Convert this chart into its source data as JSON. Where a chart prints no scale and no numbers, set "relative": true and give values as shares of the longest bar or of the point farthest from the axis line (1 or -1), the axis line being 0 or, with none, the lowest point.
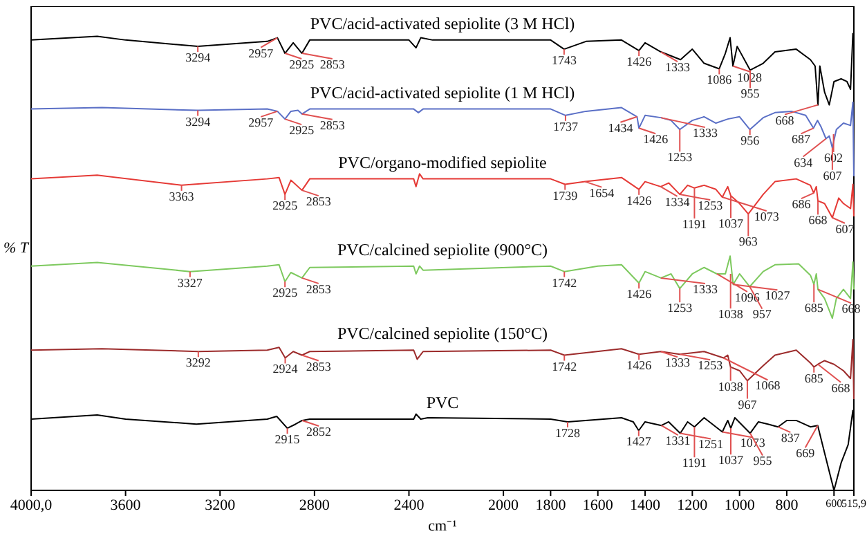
{
  "chart_data": {
    "type": "line",
    "relative": true,
    "xlabel": "cm⁻¹",
    "ylabel": "% T",
    "xlim": [
      4000,
      515.9
    ],
    "xticks": [
      {
        "value": 4000,
        "label": "4000,0"
      },
      3600,
      3200,
      2800,
      2400,
      2000,
      1800,
      1600,
      1400,
      1200,
      1000,
      800,
      600,
      {
        "value": 515.9,
        "label": "515,9"
      }
    ],
    "grid": false,
    "legend": false,
    "marker": "none",
    "line_style": "solid",
    "series": [
      {
        "name": "PVC/acid-activated sepiolite (3 M HCl)",
        "color": "#000000",
        "x": [
          4000,
          3720,
          3600,
          3294,
          3000,
          2957,
          2925,
          2890,
          2853,
          2820,
          2400,
          2370,
          2350,
          2300,
          1800,
          1743,
          1650,
          1500,
          1426,
          1400,
          1333,
          1250,
          1200,
          1150,
          1086,
          1060,
          1040,
          1028,
          1010,
          955,
          900,
          850,
          760,
          700,
          680,
          668,
          660,
          640,
          620,
          600,
          570,
          545,
          530,
          520,
          516
        ],
        "values": [
          0.986,
          0.994,
          0.986,
          0.972,
          0.983,
          0.991,
          0.957,
          0.98,
          0.957,
          0.986,
          0.986,
          0.969,
          0.991,
          0.986,
          0.986,
          0.966,
          0.983,
          0.986,
          0.963,
          0.98,
          0.96,
          0.943,
          0.966,
          0.935,
          0.923,
          0.957,
          0.991,
          0.929,
          0.972,
          0.92,
          0.935,
          0.96,
          0.966,
          0.943,
          0.929,
          0.844,
          0.929,
          0.872,
          0.844,
          0.895,
          0.901,
          0.895,
          0.878,
          1.0,
          0.986
        ]
      },
      {
        "name": "PVC/acid-activated sepiolite (1 M HCl)",
        "color": "#5a6fc6",
        "x": [
          4000,
          3700,
          3294,
          3000,
          2957,
          2925,
          2900,
          2870,
          2853,
          2820,
          2380,
          2360,
          2340,
          1800,
          1737,
          1650,
          1500,
          1434,
          1426,
          1400,
          1333,
          1290,
          1253,
          1200,
          1150,
          1100,
          1050,
          1000,
          956,
          900,
          850,
          780,
          720,
          687,
          670,
          655,
          634,
          620,
          607,
          590,
          560,
          530,
          520,
          516
        ],
        "values": [
          0.835,
          0.838,
          0.832,
          0.835,
          0.83,
          0.813,
          0.83,
          0.832,
          0.824,
          0.835,
          0.835,
          0.827,
          0.835,
          0.835,
          0.821,
          0.83,
          0.838,
          0.818,
          0.793,
          0.821,
          0.816,
          0.81,
          0.79,
          0.81,
          0.818,
          0.804,
          0.813,
          0.818,
          0.79,
          0.816,
          0.827,
          0.83,
          0.821,
          0.793,
          0.81,
          0.796,
          0.77,
          0.776,
          0.75,
          0.79,
          0.804,
          0.799,
          0.85,
          0.688
        ]
      },
      {
        "name": "PVC/organo-modified sepiolite",
        "color": "#e53935",
        "x": [
          4000,
          3720,
          3363,
          3000,
          2950,
          2925,
          2900,
          2853,
          2820,
          2380,
          2370,
          2355,
          2340,
          1800,
          1739,
          1654,
          1500,
          1426,
          1400,
          1334,
          1300,
          1253,
          1220,
          1191,
          1150,
          1100,
          1073,
          1050,
          1037,
          1000,
          963,
          900,
          850,
          760,
          700,
          686,
          675,
          668,
          640,
          607,
          580,
          560,
          530,
          520,
          516
        ],
        "values": [
          0.682,
          0.69,
          0.668,
          0.682,
          0.685,
          0.648,
          0.679,
          0.657,
          0.682,
          0.682,
          0.665,
          0.693,
          0.682,
          0.682,
          0.67,
          0.676,
          0.685,
          0.659,
          0.676,
          0.665,
          0.673,
          0.648,
          0.668,
          0.662,
          0.668,
          0.659,
          0.642,
          0.665,
          0.645,
          0.628,
          0.605,
          0.648,
          0.676,
          0.682,
          0.668,
          0.651,
          0.665,
          0.634,
          0.628,
          0.597,
          0.64,
          0.628,
          0.617,
          0.67,
          0.6
        ]
      },
      {
        "name": "PVC/calcined sepiolite (900°C)",
        "color": "#7dc95e",
        "x": [
          4000,
          3720,
          3327,
          3000,
          2950,
          2925,
          2900,
          2853,
          2820,
          2380,
          2370,
          2355,
          2340,
          1800,
          1742,
          1600,
          1500,
          1426,
          1400,
          1333,
          1290,
          1253,
          1200,
          1150,
          1096,
          1060,
          1040,
          1027,
          1000,
          957,
          900,
          850,
          750,
          700,
          685,
          675,
          668,
          640,
          607,
          590,
          560,
          530,
          520,
          516
        ],
        "values": [
          0.491,
          0.499,
          0.479,
          0.491,
          0.494,
          0.457,
          0.477,
          0.465,
          0.488,
          0.491,
          0.474,
          0.491,
          0.482,
          0.491,
          0.479,
          0.491,
          0.494,
          0.454,
          0.479,
          0.465,
          0.474,
          0.442,
          0.474,
          0.488,
          0.474,
          0.474,
          0.513,
          0.451,
          0.474,
          0.446,
          0.479,
          0.494,
          0.496,
          0.471,
          0.451,
          0.474,
          0.44,
          0.42,
          0.377,
          0.42,
          0.44,
          0.42,
          0.5,
          0.44
        ]
      },
      {
        "name": "PVC/calcined sepiolite (150°C)",
        "color": "#9c2b2b",
        "x": [
          4000,
          3700,
          3292,
          3000,
          2950,
          2924,
          2890,
          2853,
          2820,
          2380,
          2365,
          2340,
          1800,
          1742,
          1500,
          1426,
          1333,
          1253,
          1150,
          1068,
          1050,
          1038,
          1000,
          967,
          900,
          850,
          760,
          700,
          685,
          668,
          640,
          600,
          560,
          530,
          520,
          516
        ],
        "values": [
          0.307,
          0.31,
          0.304,
          0.307,
          0.313,
          0.29,
          0.304,
          0.296,
          0.304,
          0.307,
          0.287,
          0.304,
          0.307,
          0.296,
          0.31,
          0.298,
          0.304,
          0.298,
          0.304,
          0.29,
          0.296,
          0.27,
          0.262,
          0.24,
          0.273,
          0.296,
          0.307,
          0.279,
          0.27,
          0.276,
          0.284,
          0.276,
          0.262,
          0.245,
          0.33,
          0.2
        ]
      },
      {
        "name": "PVC",
        "color": "#000000",
        "x": [
          4000,
          3720,
          3600,
          3300,
          3000,
          2960,
          2915,
          2880,
          2852,
          2820,
          2380,
          2370,
          2350,
          2320,
          1800,
          1728,
          1500,
          1450,
          1427,
          1400,
          1331,
          1300,
          1251,
          1220,
          1191,
          1150,
          1073,
          1050,
          1037,
          1020,
          955,
          920,
          880,
          837,
          800,
          760,
          700,
          669,
          640,
          600,
          570,
          540,
          520,
          516
        ],
        "values": [
          0.156,
          0.165,
          0.156,
          0.145,
          0.156,
          0.162,
          0.136,
          0.145,
          0.153,
          0.156,
          0.156,
          0.167,
          0.156,
          0.159,
          0.156,
          0.15,
          0.159,
          0.15,
          0.131,
          0.15,
          0.142,
          0.15,
          0.125,
          0.15,
          0.139,
          0.159,
          0.128,
          0.153,
          0.136,
          0.159,
          0.125,
          0.15,
          0.145,
          0.139,
          0.153,
          0.153,
          0.139,
          0.142,
          0.082,
          0.0,
          0.06,
          0.1,
          0.175,
          0.15
        ]
      }
    ],
    "annotations": [
      {
        "text": "3294",
        "x": 3294,
        "y": 0.972
      },
      {
        "text": "2957",
        "x": 2957,
        "y": 0.991
      },
      {
        "text": "2925",
        "x": 2925,
        "y": 0.957
      },
      {
        "text": "2853",
        "x": 2853,
        "y": 0.957
      },
      {
        "text": "1743",
        "x": 1743,
        "y": 0.966
      },
      {
        "text": "1426",
        "x": 1426,
        "y": 0.963
      },
      {
        "text": "1333",
        "x": 1333,
        "y": 0.96
      },
      {
        "text": "1086",
        "x": 1086,
        "y": 0.923
      },
      {
        "text": "1028",
        "x": 1028,
        "y": 0.929
      },
      {
        "text": "955",
        "x": 955,
        "y": 0.92
      },
      {
        "text": "668",
        "x": 668,
        "y": 0.844
      },
      {
        "text": "3294",
        "x": 3294,
        "y": 0.832
      },
      {
        "text": "2957",
        "x": 2957,
        "y": 0.83
      },
      {
        "text": "2925",
        "x": 2925,
        "y": 0.813
      },
      {
        "text": "2853",
        "x": 2853,
        "y": 0.824
      },
      {
        "text": "1737",
        "x": 1737,
        "y": 0.821
      },
      {
        "text": "1434",
        "x": 1434,
        "y": 0.818
      },
      {
        "text": "1426",
        "x": 1426,
        "y": 0.793
      },
      {
        "text": "1333",
        "x": 1333,
        "y": 0.816
      },
      {
        "text": "1253",
        "x": 1253,
        "y": 0.79
      },
      {
        "text": "956",
        "x": 956,
        "y": 0.79
      },
      {
        "text": "687",
        "x": 687,
        "y": 0.793
      },
      {
        "text": "602",
        "x": 602,
        "y": 0.78
      },
      {
        "text": "634",
        "x": 634,
        "y": 0.77
      },
      {
        "text": "607",
        "x": 607,
        "y": 0.75
      },
      {
        "text": "3363",
        "x": 3363,
        "y": 0.668
      },
      {
        "text": "2925",
        "x": 2925,
        "y": 0.648
      },
      {
        "text": "2853",
        "x": 2853,
        "y": 0.657
      },
      {
        "text": "1739",
        "x": 1739,
        "y": 0.67
      },
      {
        "text": "1654",
        "x": 1654,
        "y": 0.676
      },
      {
        "text": "1426",
        "x": 1426,
        "y": 0.659
      },
      {
        "text": "1334",
        "x": 1334,
        "y": 0.665
      },
      {
        "text": "1253",
        "x": 1253,
        "y": 0.648
      },
      {
        "text": "1191",
        "x": 1191,
        "y": 0.662
      },
      {
        "text": "1073",
        "x": 1073,
        "y": 0.642
      },
      {
        "text": "1037",
        "x": 1037,
        "y": 0.645
      },
      {
        "text": "963",
        "x": 963,
        "y": 0.605
      },
      {
        "text": "686",
        "x": 686,
        "y": 0.651
      },
      {
        "text": "668",
        "x": 668,
        "y": 0.634
      },
      {
        "text": "607",
        "x": 607,
        "y": 0.597
      },
      {
        "text": "3327",
        "x": 3327,
        "y": 0.479
      },
      {
        "text": "2925",
        "x": 2925,
        "y": 0.457
      },
      {
        "text": "2853",
        "x": 2853,
        "y": 0.465
      },
      {
        "text": "1742",
        "x": 1742,
        "y": 0.479
      },
      {
        "text": "1426",
        "x": 1426,
        "y": 0.454
      },
      {
        "text": "1333",
        "x": 1333,
        "y": 0.465
      },
      {
        "text": "1253",
        "x": 1253,
        "y": 0.442
      },
      {
        "text": "1096",
        "x": 1096,
        "y": 0.474
      },
      {
        "text": "1038",
        "x": 1038,
        "y": 0.474
      },
      {
        "text": "1027",
        "x": 1027,
        "y": 0.451
      },
      {
        "text": "957",
        "x": 957,
        "y": 0.446
      },
      {
        "text": "685",
        "x": 685,
        "y": 0.451
      },
      {
        "text": "668",
        "x": 668,
        "y": 0.44
      },
      {
        "text": "3292",
        "x": 3292,
        "y": 0.304
      },
      {
        "text": "2924",
        "x": 2924,
        "y": 0.29
      },
      {
        "text": "2853",
        "x": 2853,
        "y": 0.296
      },
      {
        "text": "1742",
        "x": 1742,
        "y": 0.296
      },
      {
        "text": "1426",
        "x": 1426,
        "y": 0.298
      },
      {
        "text": "1333",
        "x": 1333,
        "y": 0.304
      },
      {
        "text": "1253",
        "x": 1253,
        "y": 0.298
      },
      {
        "text": "1068",
        "x": 1068,
        "y": 0.29
      },
      {
        "text": "1038",
        "x": 1038,
        "y": 0.27
      },
      {
        "text": "967",
        "x": 967,
        "y": 0.24
      },
      {
        "text": "685",
        "x": 685,
        "y": 0.27
      },
      {
        "text": "668",
        "x": 668,
        "y": 0.276
      },
      {
        "text": "2915",
        "x": 2915,
        "y": 0.136
      },
      {
        "text": "2852",
        "x": 2852,
        "y": 0.153
      },
      {
        "text": "1728",
        "x": 1728,
        "y": 0.15
      },
      {
        "text": "1427",
        "x": 1427,
        "y": 0.131
      },
      {
        "text": "1331",
        "x": 1331,
        "y": 0.142
      },
      {
        "text": "1251",
        "x": 1251,
        "y": 0.125
      },
      {
        "text": "1191",
        "x": 1191,
        "y": 0.139
      },
      {
        "text": "1073",
        "x": 1073,
        "y": 0.128
      },
      {
        "text": "1037",
        "x": 1037,
        "y": 0.136
      },
      {
        "text": "955",
        "x": 955,
        "y": 0.125
      },
      {
        "text": "837",
        "x": 837,
        "y": 0.139
      },
      {
        "text": "669",
        "x": 669,
        "y": 0.142
      }
    ]
  }
}
